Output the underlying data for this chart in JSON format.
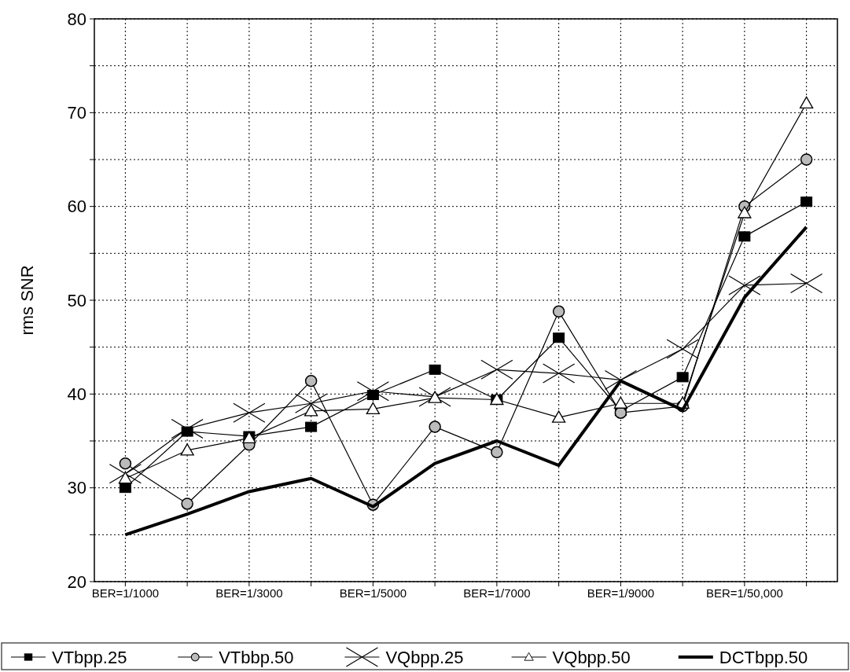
{
  "chart_data": {
    "type": "line",
    "ylabel": "rms SNR",
    "categories": [
      "BER=1/1000",
      null,
      "BER=1/3000",
      null,
      "BER=1/5000",
      null,
      "BER=1/7000",
      null,
      "BER=1/9000",
      null,
      "BER=1/50,000",
      null
    ],
    "ylim": [
      20,
      80
    ],
    "yticks": [
      20,
      {
        "value": 25,
        "label": null
      },
      30,
      {
        "value": 35,
        "label": null
      },
      40,
      {
        "value": 45,
        "label": null
      },
      50,
      {
        "value": 55,
        "label": null
      },
      60,
      {
        "value": 65,
        "label": null
      },
      70,
      {
        "value": 75,
        "label": null
      },
      80
    ],
    "grid": true,
    "legend": "bottom",
    "line_style": "solid",
    "series": [
      {
        "name": "VTbpp.25",
        "color": "#000000",
        "marker": "square",
        "values": [
          30,
          36,
          35.5,
          36.5,
          39.9,
          42.6,
          39.4,
          46,
          38.2,
          41.8,
          56.8,
          60.5
        ]
      },
      {
        "name": "VTbbp.50",
        "color": "#000000",
        "marker": "circle",
        "values": [
          32.6,
          28.3,
          34.6,
          41.4,
          28.2,
          36.5,
          33.8,
          48.8,
          38,
          38.7,
          60,
          65
        ]
      },
      {
        "name": "VQbpp.25",
        "color": "#000000",
        "marker": "cross",
        "values": [
          31.5,
          36.3,
          38,
          39,
          40.3,
          39.7,
          42.6,
          42.2,
          41.5,
          44.8,
          51.6,
          51.8
        ]
      },
      {
        "name": "VQbpp.50",
        "color": "#000000",
        "marker": "triangle",
        "values": [
          31,
          34,
          35.3,
          38.2,
          38.4,
          39.6,
          39.4,
          37.5,
          39,
          39,
          59.3,
          71
        ]
      },
      {
        "name": "DCTbpp.50",
        "color": "#000000",
        "marker": "none",
        "values": [
          25,
          27.2,
          29.6,
          31,
          28,
          32.6,
          35,
          32.4,
          41.4,
          38.3,
          50.3,
          57.8
        ]
      }
    ]
  }
}
